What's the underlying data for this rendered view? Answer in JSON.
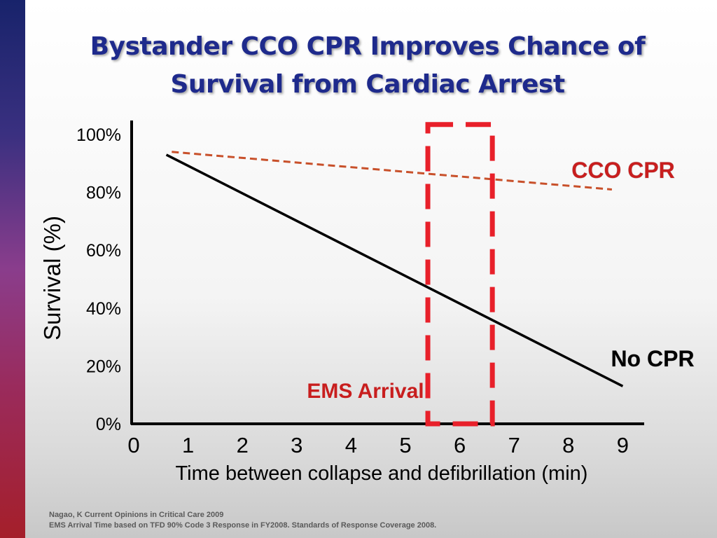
{
  "title": {
    "line1": "Bystander CCO CPR Improves Chance of",
    "line2": "Survival from Cardiac Arrest"
  },
  "colors": {
    "title": "#1e2a8c",
    "cco_line": "#c8502a",
    "no_cpr_line": "#000000",
    "ems_box": "#e8202a",
    "label_red": "#c81e1e",
    "axis": "#000000"
  },
  "chart_data": {
    "type": "line",
    "xlabel": "Time between collapse and defibrillation (min)",
    "ylabel": "Survival (%)",
    "xlim": [
      0,
      9.3
    ],
    "ylim": [
      0,
      100
    ],
    "x_ticks": [
      "0",
      "1",
      "2",
      "3",
      "4",
      "5",
      "6",
      "7",
      "8",
      "9"
    ],
    "y_ticks": [
      "0%",
      "20%",
      "40%",
      "60%",
      "80%",
      "100%"
    ],
    "grid": false,
    "series": [
      {
        "name": "CCO CPR",
        "style": "dashed",
        "color": "#c8502a",
        "points": [
          [
            0.7,
            94
          ],
          [
            8.8,
            81
          ]
        ]
      },
      {
        "name": "No CPR",
        "style": "solid",
        "color": "#000000",
        "points": [
          [
            0.6,
            93
          ],
          [
            9.0,
            13
          ]
        ]
      }
    ],
    "highlight": {
      "label": "EMS Arrival",
      "x_range": [
        5.4,
        6.6
      ],
      "y_range": [
        0,
        102
      ],
      "style": "dashed",
      "color": "#e8202a"
    }
  },
  "footnote": {
    "line1": "Nagao, K  Current  Opinions in Critical Care  2009",
    "line2": "EMS Arrival Time based on TFD 90% Code 3 Response in FY2008.  Standards of Response Coverage 2008."
  }
}
